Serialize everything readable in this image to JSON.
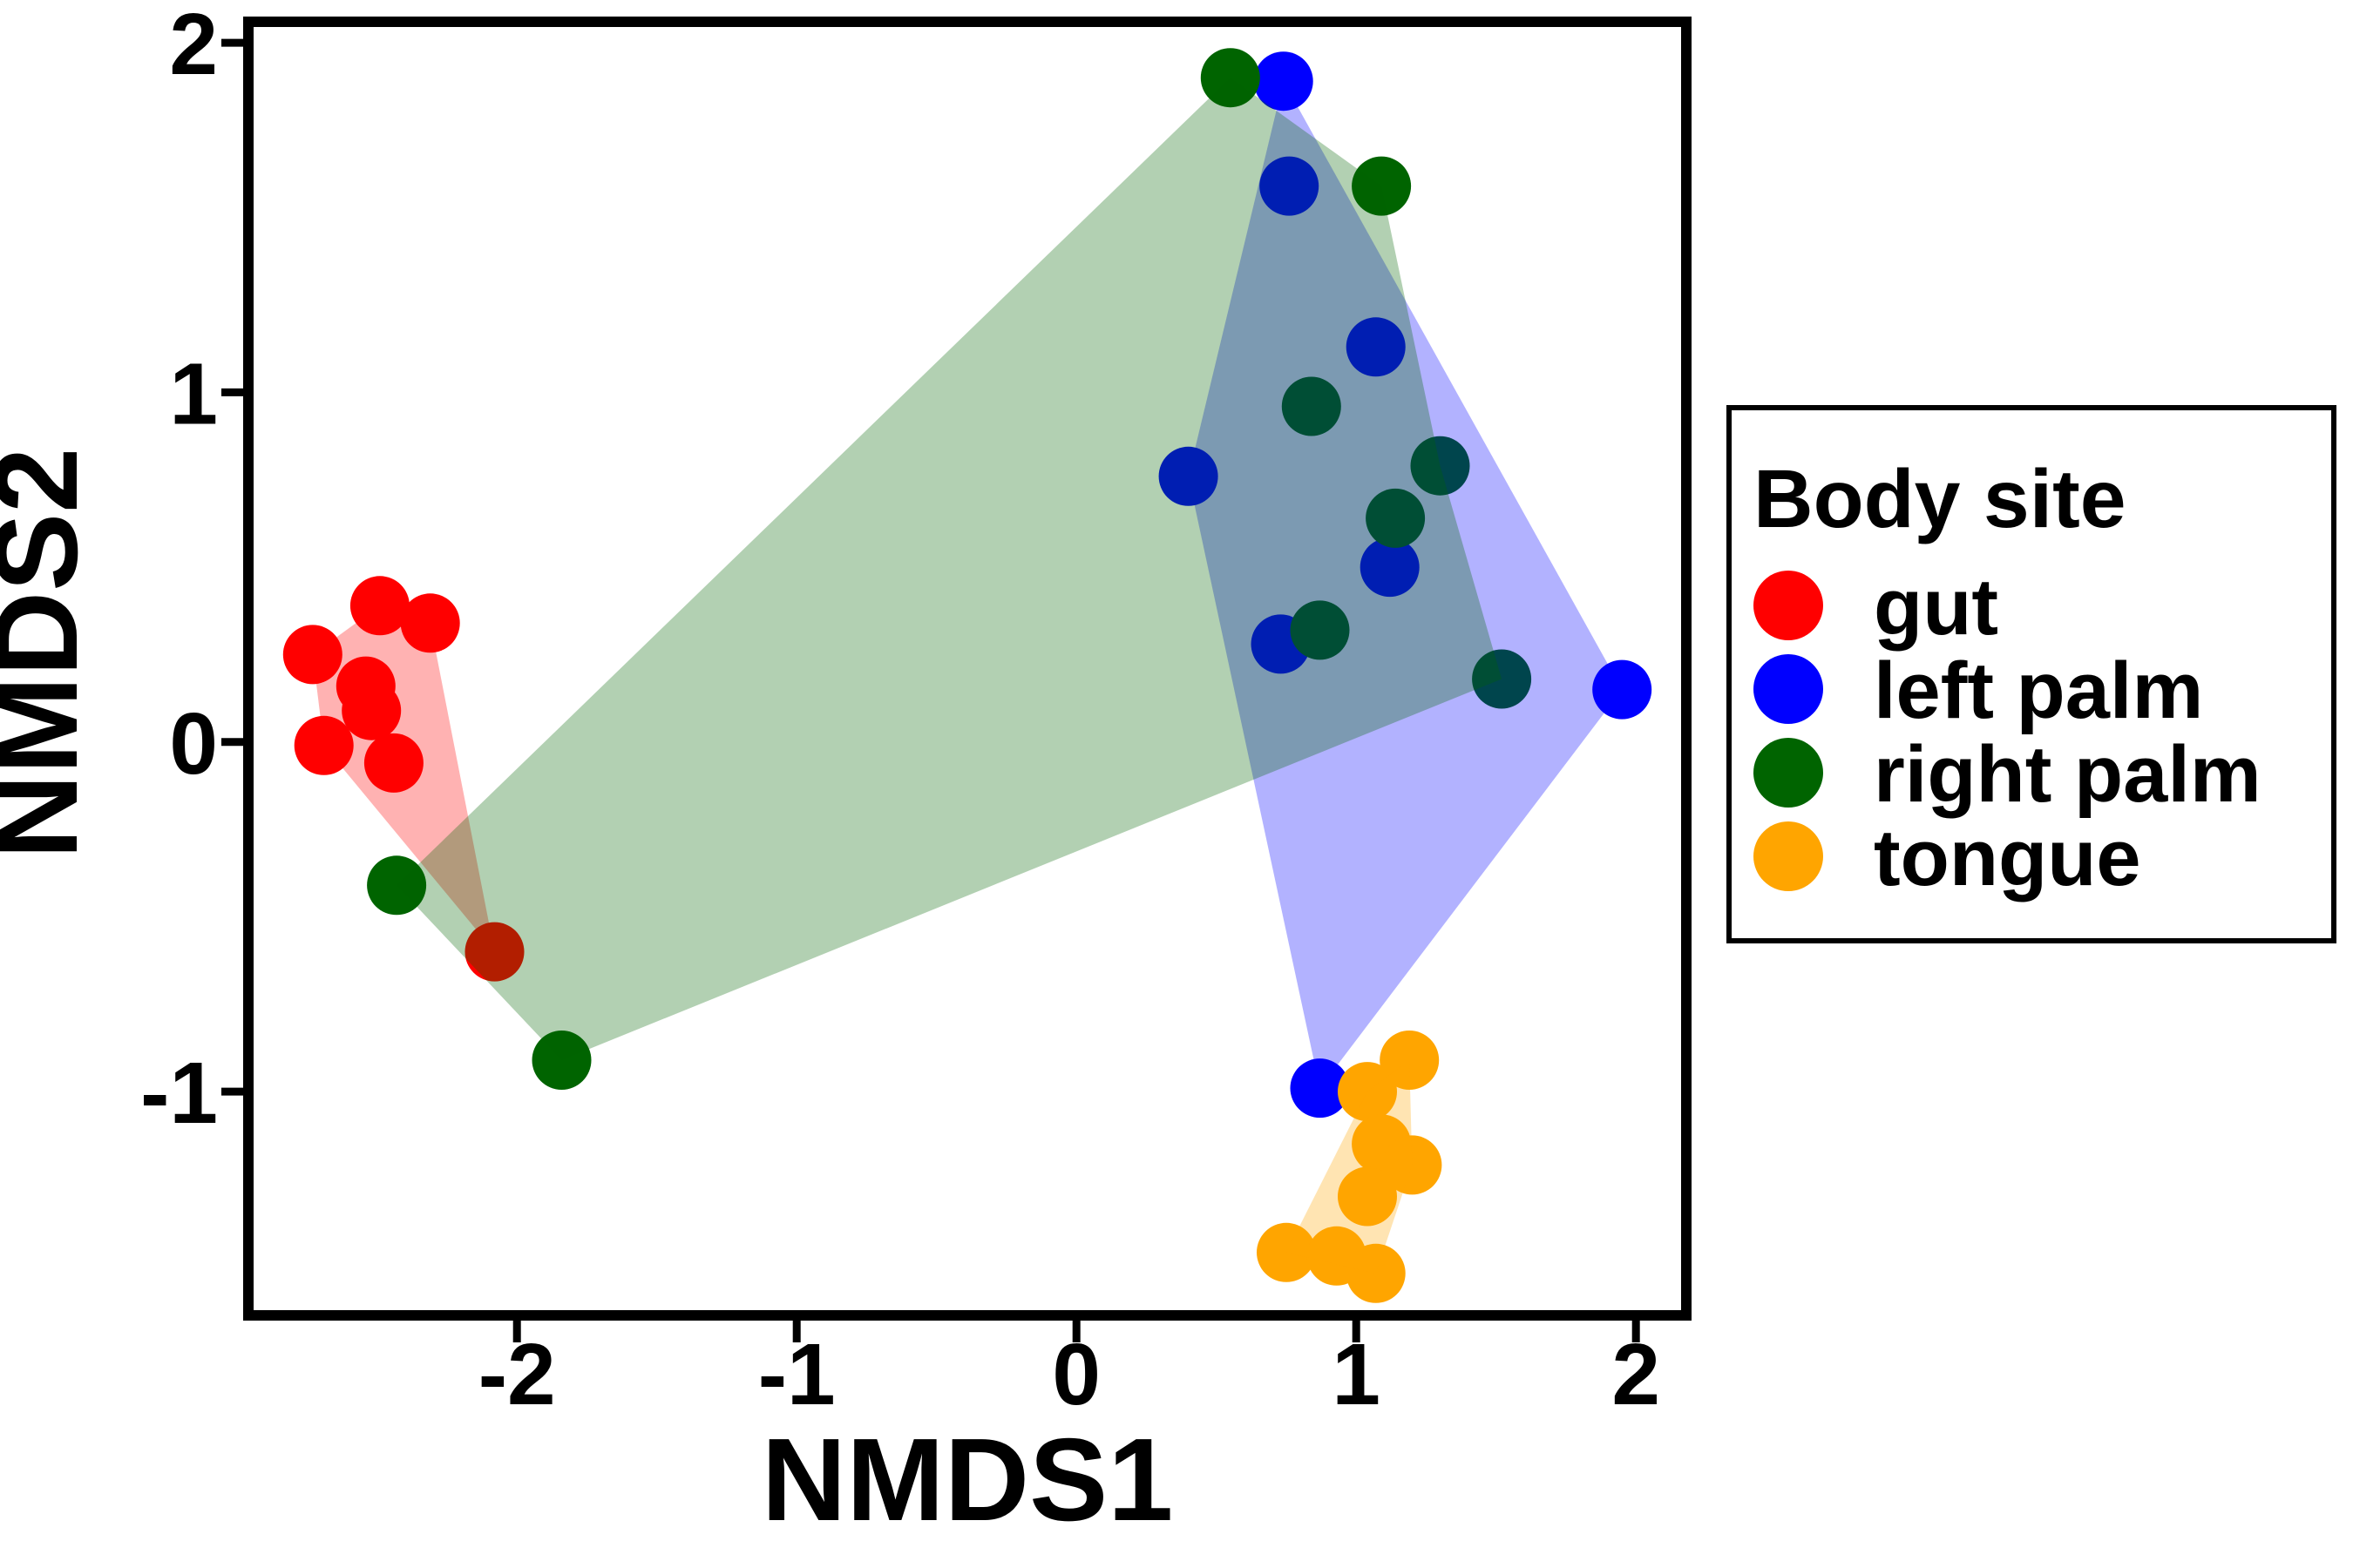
{
  "chart_data": {
    "type": "scatter",
    "title": "",
    "xlabel": "NMDS1",
    "ylabel": "NMDS2",
    "xlim": [
      -2.96,
      2.18
    ],
    "ylim": [
      -1.64,
      2.06
    ],
    "xticks": [
      "-2",
      "-1",
      "0",
      "1",
      "2"
    ],
    "xtick_values": [
      -2,
      -1,
      0,
      1,
      2
    ],
    "yticks": [
      "-1",
      "0",
      "1",
      "2"
    ],
    "ytick_values": [
      -1,
      0,
      1,
      2
    ],
    "grid": false,
    "legend_position": "right",
    "hull_fill_opacity": 0.3,
    "series": [
      {
        "name": "gut",
        "color": "#FF0000",
        "points": [
          [
            -2.49,
            0.39
          ],
          [
            -2.31,
            0.34
          ],
          [
            -2.73,
            0.25
          ],
          [
            -2.54,
            0.16
          ],
          [
            -2.52,
            0.09
          ],
          [
            -2.69,
            -0.01
          ],
          [
            -2.44,
            -0.06
          ],
          [
            -2.08,
            -0.6
          ]
        ],
        "hull": [
          [
            -2.49,
            0.39
          ],
          [
            -2.31,
            0.34
          ],
          [
            -2.08,
            -0.6
          ],
          [
            -2.69,
            -0.01
          ],
          [
            -2.73,
            0.25
          ]
        ]
      },
      {
        "name": "left palm",
        "color": "#0000FF",
        "points": [
          [
            0.74,
            1.89
          ],
          [
            0.76,
            1.59
          ],
          [
            1.07,
            1.13
          ],
          [
            0.4,
            0.76
          ],
          [
            1.12,
            0.5
          ],
          [
            0.73,
            0.28
          ],
          [
            1.95,
            0.15
          ],
          [
            0.87,
            -0.99
          ]
        ],
        "hull": [
          [
            0.74,
            1.89
          ],
          [
            1.95,
            0.15
          ],
          [
            0.87,
            -0.99
          ],
          [
            0.4,
            0.76
          ]
        ]
      },
      {
        "name": "right palm",
        "color": "#006400",
        "points": [
          [
            0.55,
            1.9
          ],
          [
            1.09,
            1.59
          ],
          [
            0.84,
            0.96
          ],
          [
            1.3,
            0.79
          ],
          [
            1.14,
            0.64
          ],
          [
            0.87,
            0.32
          ],
          [
            1.52,
            0.18
          ],
          [
            -2.43,
            -0.41
          ],
          [
            -1.84,
            -0.91
          ]
        ],
        "hull": [
          [
            0.55,
            1.9
          ],
          [
            1.09,
            1.59
          ],
          [
            1.3,
            0.79
          ],
          [
            1.52,
            0.18
          ],
          [
            -1.84,
            -0.91
          ],
          [
            -2.43,
            -0.41
          ]
        ]
      },
      {
        "name": "tongue",
        "color": "#FFA500",
        "points": [
          [
            1.19,
            -0.91
          ],
          [
            1.04,
            -1.0
          ],
          [
            1.09,
            -1.15
          ],
          [
            1.2,
            -1.21
          ],
          [
            1.04,
            -1.3
          ],
          [
            0.75,
            -1.46
          ],
          [
            0.93,
            -1.47
          ],
          [
            1.07,
            -1.52
          ]
        ],
        "hull": [
          [
            1.19,
            -0.91
          ],
          [
            1.2,
            -1.21
          ],
          [
            1.07,
            -1.52
          ],
          [
            0.75,
            -1.46
          ],
          [
            1.04,
            -1.0
          ]
        ]
      }
    ]
  },
  "legend": {
    "title": "Body site",
    "entries": [
      {
        "label": "gut",
        "color": "#FF0000"
      },
      {
        "label": "left palm",
        "color": "#0000FF"
      },
      {
        "label": "right palm",
        "color": "#006400"
      },
      {
        "label": "tongue",
        "color": "#FFA500"
      }
    ]
  }
}
